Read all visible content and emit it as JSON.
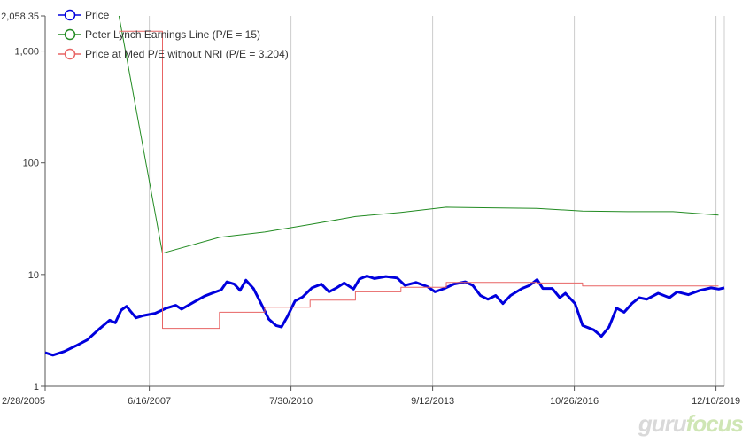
{
  "chart_data": {
    "type": "line",
    "y_scale": "log",
    "ylim": [
      1,
      2058.35
    ],
    "y_ticks": [
      1,
      10,
      100,
      1000
    ],
    "y_tick_labels": [
      "1",
      "10",
      "100",
      "1,000"
    ],
    "y_top_label": "2,058.35",
    "x_range": [
      "2005-02-28",
      "2020-02-15"
    ],
    "x_ticks": [
      "2005-02-28",
      "2007-06-16",
      "2010-07-30",
      "2013-09-12",
      "2016-10-26",
      "2019-12-10"
    ],
    "x_tick_labels": [
      "2/28/2005",
      "6/16/2007",
      "7/30/2010",
      "9/12/2013",
      "10/26/2016",
      "12/10/2019"
    ],
    "grid": "vertical",
    "legend_position": "top-left",
    "series": [
      {
        "name": "Price",
        "color": "#0000dd",
        "style": "thick",
        "points": [
          [
            "2005-02-28",
            2.0
          ],
          [
            "2005-05-01",
            1.9
          ],
          [
            "2005-08-01",
            2.05
          ],
          [
            "2005-11-01",
            2.3
          ],
          [
            "2006-02-01",
            2.6
          ],
          [
            "2006-05-01",
            3.2
          ],
          [
            "2006-08-01",
            3.9
          ],
          [
            "2006-09-15",
            3.7
          ],
          [
            "2006-11-01",
            4.8
          ],
          [
            "2006-12-15",
            5.2
          ],
          [
            "2007-01-15",
            4.7
          ],
          [
            "2007-03-01",
            4.1
          ],
          [
            "2007-05-01",
            4.3
          ],
          [
            "2007-08-01",
            4.5
          ],
          [
            "2007-11-01",
            5.0
          ],
          [
            "2008-01-15",
            5.3
          ],
          [
            "2008-03-01",
            4.9
          ],
          [
            "2008-06-01",
            5.6
          ],
          [
            "2008-09-01",
            6.4
          ],
          [
            "2008-11-01",
            6.8
          ],
          [
            "2009-01-15",
            7.3
          ],
          [
            "2009-03-01",
            8.6
          ],
          [
            "2009-05-01",
            8.2
          ],
          [
            "2009-06-15",
            7.2
          ],
          [
            "2009-08-01",
            8.9
          ],
          [
            "2009-10-01",
            7.5
          ],
          [
            "2009-12-01",
            5.5
          ],
          [
            "2010-02-01",
            4.0
          ],
          [
            "2010-04-01",
            3.5
          ],
          [
            "2010-05-15",
            3.4
          ],
          [
            "2010-07-01",
            4.2
          ],
          [
            "2010-09-01",
            5.8
          ],
          [
            "2010-11-01",
            6.3
          ],
          [
            "2011-01-15",
            7.6
          ],
          [
            "2011-04-01",
            8.2
          ],
          [
            "2011-06-01",
            7.0
          ],
          [
            "2011-08-01",
            7.6
          ],
          [
            "2011-10-01",
            8.4
          ],
          [
            "2011-12-15",
            7.4
          ],
          [
            "2012-02-01",
            9.1
          ],
          [
            "2012-04-01",
            9.7
          ],
          [
            "2012-06-01",
            9.2
          ],
          [
            "2012-09-01",
            9.6
          ],
          [
            "2012-12-01",
            9.3
          ],
          [
            "2013-02-01",
            8.0
          ],
          [
            "2013-05-01",
            8.5
          ],
          [
            "2013-08-01",
            7.8
          ],
          [
            "2013-10-01",
            7.0
          ],
          [
            "2013-12-15",
            7.5
          ],
          [
            "2014-03-01",
            8.2
          ],
          [
            "2014-06-01",
            8.6
          ],
          [
            "2014-08-01",
            8.0
          ],
          [
            "2014-10-01",
            6.5
          ],
          [
            "2014-12-01",
            6.0
          ],
          [
            "2015-02-01",
            6.5
          ],
          [
            "2015-04-01",
            5.5
          ],
          [
            "2015-06-01",
            6.5
          ],
          [
            "2015-09-01",
            7.5
          ],
          [
            "2015-11-01",
            8.0
          ],
          [
            "2016-01-01",
            9.0
          ],
          [
            "2016-02-15",
            7.5
          ],
          [
            "2016-05-01",
            7.5
          ],
          [
            "2016-07-01",
            6.2
          ],
          [
            "2016-08-15",
            6.8
          ],
          [
            "2016-11-01",
            5.5
          ],
          [
            "2017-01-01",
            3.5
          ],
          [
            "2017-04-01",
            3.2
          ],
          [
            "2017-06-01",
            2.8
          ],
          [
            "2017-08-01",
            3.4
          ],
          [
            "2017-10-01",
            5.0
          ],
          [
            "2017-12-01",
            4.6
          ],
          [
            "2018-02-01",
            5.5
          ],
          [
            "2018-04-01",
            6.2
          ],
          [
            "2018-06-01",
            6.0
          ],
          [
            "2018-09-01",
            6.8
          ],
          [
            "2018-12-01",
            6.2
          ],
          [
            "2019-02-01",
            7.0
          ],
          [
            "2019-05-01",
            6.6
          ],
          [
            "2019-08-01",
            7.2
          ],
          [
            "2019-11-01",
            7.6
          ],
          [
            "2020-01-01",
            7.4
          ],
          [
            "2020-02-15",
            7.6
          ]
        ]
      },
      {
        "name": "Peter Lynch Earnings Line (P/E = 15)",
        "color": "#228b22",
        "style": "thin",
        "points": [
          [
            "2006-10-15",
            2058.35
          ],
          [
            "2007-09-30",
            15.5
          ],
          [
            "2008-12-31",
            21.5
          ],
          [
            "2009-12-31",
            24.0
          ],
          [
            "2010-12-31",
            28.0
          ],
          [
            "2011-12-31",
            33.0
          ],
          [
            "2012-12-31",
            36.0
          ],
          [
            "2013-12-31",
            40.0
          ],
          [
            "2014-12-31",
            39.5
          ],
          [
            "2015-12-31",
            39.0
          ],
          [
            "2016-12-31",
            37.0
          ],
          [
            "2017-12-31",
            36.5
          ],
          [
            "2018-12-31",
            36.5
          ],
          [
            "2019-12-31",
            34.0
          ]
        ]
      },
      {
        "name": "Price at Med P/E without NRI (P/E = 3.204)",
        "color": "#e86464",
        "style": "step",
        "points": [
          [
            "2006-10-15",
            1500
          ],
          [
            "2007-09-30",
            1500
          ],
          [
            "2007-09-30",
            3.3
          ],
          [
            "2008-12-31",
            3.3
          ],
          [
            "2008-12-31",
            4.6
          ],
          [
            "2009-12-31",
            4.6
          ],
          [
            "2009-12-31",
            5.1
          ],
          [
            "2010-12-31",
            5.1
          ],
          [
            "2010-12-31",
            5.9
          ],
          [
            "2011-12-31",
            5.9
          ],
          [
            "2011-12-31",
            7.0
          ],
          [
            "2012-12-31",
            7.0
          ],
          [
            "2012-12-31",
            7.7
          ],
          [
            "2013-12-31",
            7.7
          ],
          [
            "2013-12-31",
            8.5
          ],
          [
            "2015-12-31",
            8.5
          ],
          [
            "2015-12-31",
            8.4
          ],
          [
            "2016-12-31",
            8.4
          ],
          [
            "2016-12-31",
            7.9
          ],
          [
            "2019-12-31",
            7.9
          ]
        ]
      }
    ]
  },
  "watermark": {
    "part1": "guru",
    "part2": "focus"
  }
}
